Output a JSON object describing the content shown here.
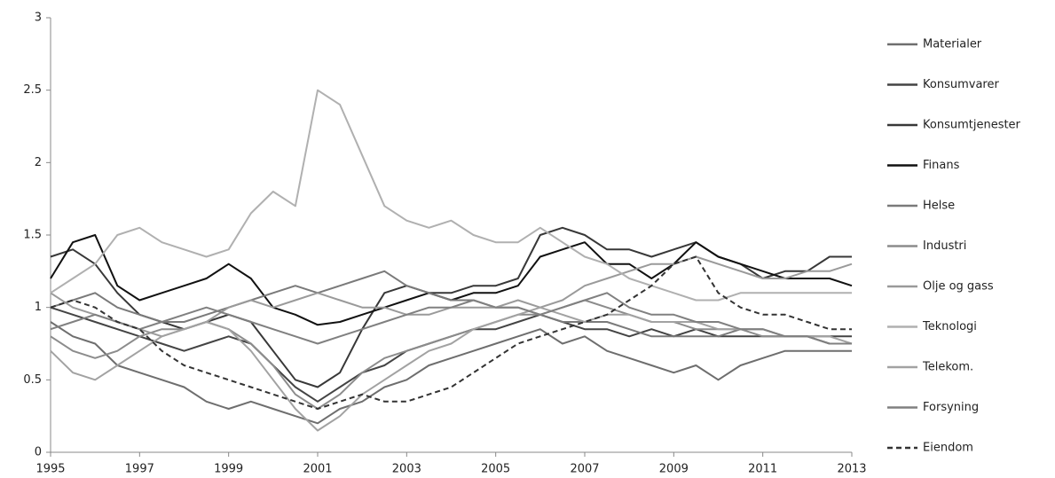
{
  "chart_data": {
    "type": "line",
    "x": [
      1995,
      1995.5,
      1996,
      1996.5,
      1997,
      1997.5,
      1998,
      1998.5,
      1999,
      1999.5,
      2000,
      2000.5,
      2001,
      2001.5,
      2002,
      2002.5,
      2003,
      2003.5,
      2004,
      2004.5,
      2005,
      2005.5,
      2006,
      2006.5,
      2007,
      2007.5,
      2008,
      2008.5,
      2009,
      2009.5,
      2010,
      2010.5,
      2011,
      2011.5,
      2012,
      2012.5,
      2013
    ],
    "xlim": [
      1995,
      2013
    ],
    "xticks": [
      1995,
      1997,
      1999,
      2001,
      2003,
      2005,
      2007,
      2009,
      2011,
      2013
    ],
    "ylim": [
      0,
      3
    ],
    "yticks": [
      0,
      0.5,
      1,
      1.5,
      2,
      2.5,
      3
    ],
    "grid": false,
    "legend": "right",
    "series": [
      {
        "name": "Materialer",
        "color": "#6e6e6e",
        "values": [
          0.9,
          0.8,
          0.75,
          0.6,
          0.55,
          0.5,
          0.45,
          0.35,
          0.3,
          0.35,
          0.3,
          0.25,
          0.2,
          0.3,
          0.35,
          0.45,
          0.5,
          0.6,
          0.65,
          0.7,
          0.75,
          0.8,
          0.85,
          0.75,
          0.8,
          0.7,
          0.65,
          0.6,
          0.55,
          0.6,
          0.5,
          0.6,
          0.65,
          0.7,
          0.7,
          0.7,
          0.7
        ]
      },
      {
        "name": "Konsumvarer",
        "color": "#444444",
        "values": [
          1.0,
          0.95,
          0.9,
          0.85,
          0.8,
          0.75,
          0.7,
          0.75,
          0.8,
          0.75,
          0.6,
          0.45,
          0.35,
          0.45,
          0.55,
          0.6,
          0.7,
          0.75,
          0.8,
          0.85,
          0.85,
          0.9,
          0.95,
          0.9,
          0.85,
          0.85,
          0.8,
          0.85,
          0.8,
          0.85,
          0.8,
          0.8,
          0.8,
          0.8,
          0.8,
          0.8,
          0.8
        ]
      },
      {
        "name": "Konsumtjenester",
        "color": "#383838",
        "values": [
          1.35,
          1.4,
          1.3,
          1.1,
          0.95,
          0.9,
          0.85,
          0.9,
          0.95,
          0.9,
          0.7,
          0.5,
          0.45,
          0.55,
          0.85,
          1.1,
          1.15,
          1.1,
          1.1,
          1.15,
          1.15,
          1.2,
          1.5,
          1.55,
          1.5,
          1.4,
          1.4,
          1.35,
          1.4,
          1.45,
          1.35,
          1.3,
          1.2,
          1.25,
          1.25,
          1.35,
          1.35
        ]
      },
      {
        "name": "Finans",
        "color": "#111111",
        "values": [
          1.2,
          1.45,
          1.5,
          1.15,
          1.05,
          1.1,
          1.15,
          1.2,
          1.3,
          1.2,
          1.0,
          0.95,
          0.88,
          0.9,
          0.95,
          1.0,
          1.05,
          1.1,
          1.05,
          1.1,
          1.1,
          1.15,
          1.35,
          1.4,
          1.45,
          1.3,
          1.3,
          1.2,
          1.3,
          1.45,
          1.35,
          1.3,
          1.25,
          1.2,
          1.2,
          1.2,
          1.15
        ]
      },
      {
        "name": "Helse",
        "color": "#7a7a7a",
        "values": [
          1.0,
          1.05,
          1.1,
          1.0,
          0.95,
          0.9,
          0.9,
          0.95,
          1.0,
          1.05,
          1.1,
          1.15,
          1.1,
          1.15,
          1.2,
          1.25,
          1.15,
          1.1,
          1.05,
          1.05,
          1.0,
          1.0,
          0.95,
          0.9,
          0.9,
          0.9,
          0.85,
          0.8,
          0.8,
          0.8,
          0.8,
          0.85,
          0.85,
          0.8,
          0.8,
          0.75,
          0.75
        ]
      },
      {
        "name": "Industri",
        "color": "#8c8c8c",
        "values": [
          0.8,
          0.7,
          0.65,
          0.7,
          0.8,
          0.85,
          0.85,
          0.9,
          0.85,
          0.75,
          0.6,
          0.4,
          0.3,
          0.4,
          0.55,
          0.65,
          0.7,
          0.75,
          0.8,
          0.85,
          0.9,
          0.95,
          0.95,
          1.0,
          1.05,
          1.0,
          0.95,
          0.9,
          0.9,
          0.85,
          0.85,
          0.85,
          0.8,
          0.8,
          0.8,
          0.75,
          0.75
        ]
      },
      {
        "name": "Olje og gass",
        "color": "#9a9a9a",
        "values": [
          1.1,
          1.0,
          0.95,
          0.9,
          0.85,
          0.8,
          0.85,
          0.9,
          1.0,
          1.05,
          1.0,
          1.05,
          1.1,
          1.05,
          1.0,
          1.0,
          0.95,
          0.95,
          1.0,
          1.0,
          1.0,
          1.05,
          1.0,
          1.05,
          1.15,
          1.2,
          1.25,
          1.3,
          1.3,
          1.35,
          1.3,
          1.25,
          1.2,
          1.2,
          1.25,
          1.25,
          1.3
        ]
      },
      {
        "name": "Teknologi",
        "color": "#b0b0b0",
        "values": [
          1.1,
          1.2,
          1.3,
          1.5,
          1.55,
          1.45,
          1.4,
          1.35,
          1.4,
          1.65,
          1.8,
          1.7,
          2.5,
          2.4,
          2.05,
          1.7,
          1.6,
          1.55,
          1.6,
          1.5,
          1.45,
          1.45,
          1.55,
          1.45,
          1.35,
          1.3,
          1.2,
          1.15,
          1.1,
          1.05,
          1.05,
          1.1,
          1.1,
          1.1,
          1.1,
          1.1,
          1.1
        ]
      },
      {
        "name": "Telekom.",
        "color": "#a2a2a2",
        "values": [
          0.7,
          0.55,
          0.5,
          0.6,
          0.7,
          0.8,
          0.85,
          0.9,
          0.85,
          0.7,
          0.5,
          0.3,
          0.15,
          0.25,
          0.4,
          0.5,
          0.6,
          0.7,
          0.75,
          0.85,
          0.9,
          0.95,
          1.0,
          0.95,
          0.9,
          0.95,
          0.95,
          0.9,
          0.9,
          0.9,
          0.85,
          0.85,
          0.85,
          0.8,
          0.8,
          0.8,
          0.75
        ]
      },
      {
        "name": "Forsyning",
        "color": "#808080",
        "values": [
          0.85,
          0.9,
          0.95,
          0.9,
          0.85,
          0.9,
          0.95,
          1.0,
          0.95,
          0.9,
          0.85,
          0.8,
          0.75,
          0.8,
          0.85,
          0.9,
          0.95,
          1.0,
          1.0,
          1.05,
          1.0,
          1.0,
          0.95,
          1.0,
          1.05,
          1.1,
          1.0,
          0.95,
          0.95,
          0.9,
          0.9,
          0.85,
          0.85,
          0.8,
          0.8,
          0.75,
          0.75
        ]
      },
      {
        "name": "Eiendom",
        "color": "#333333",
        "dash": "dashed",
        "values": [
          1.0,
          1.05,
          1.0,
          0.9,
          0.85,
          0.7,
          0.6,
          0.55,
          0.5,
          0.45,
          0.4,
          0.35,
          0.3,
          0.35,
          0.4,
          0.35,
          0.35,
          0.4,
          0.45,
          0.55,
          0.65,
          0.75,
          0.8,
          0.85,
          0.9,
          0.95,
          1.05,
          1.15,
          1.3,
          1.35,
          1.1,
          1.0,
          0.95,
          0.95,
          0.9,
          0.85,
          0.85
        ]
      }
    ]
  }
}
